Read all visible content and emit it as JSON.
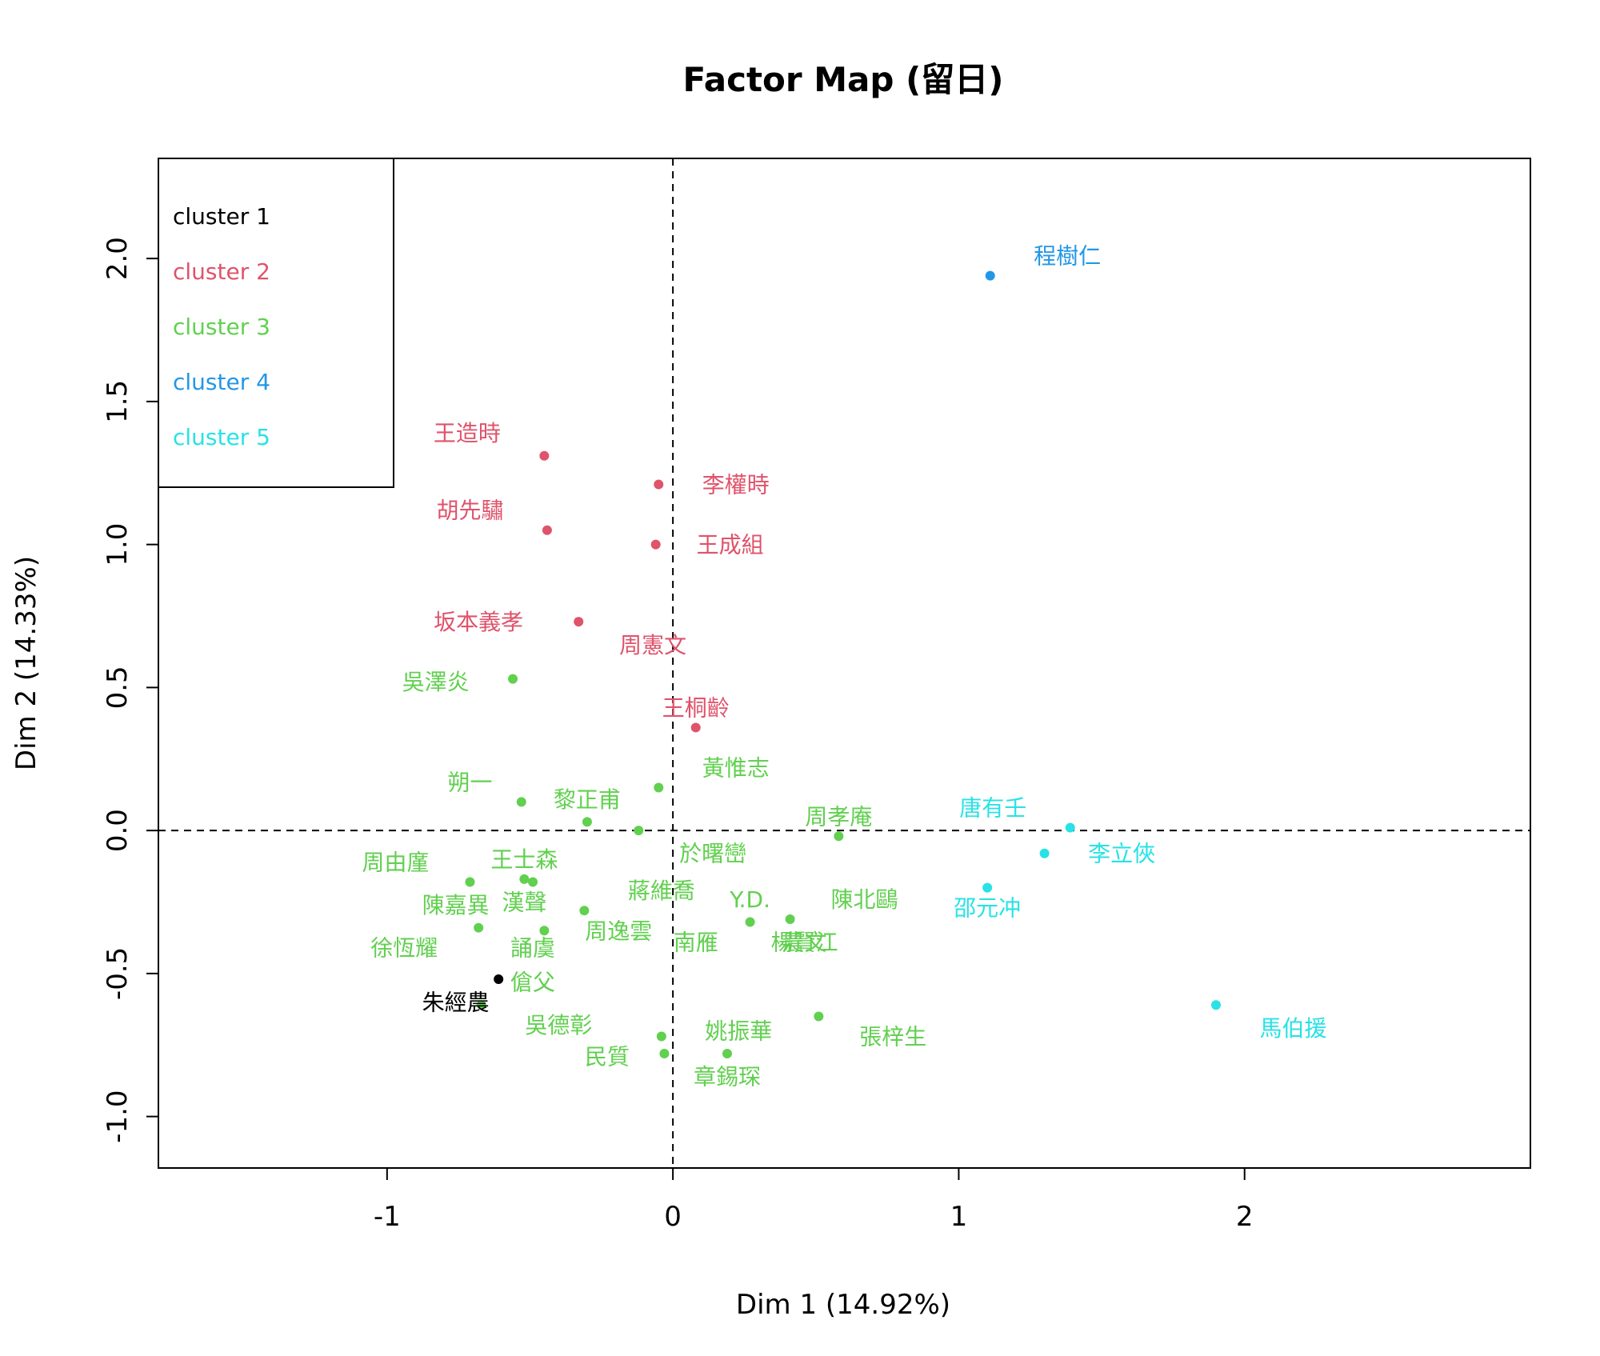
{
  "chart_data": {
    "type": "scatter",
    "title": "Factor Map (留日)",
    "xlabel": "Dim 1 (14.92%)",
    "ylabel": "Dim 2 (14.33%)",
    "xlim": [
      -1.8,
      3.0
    ],
    "ylim": [
      -1.18,
      2.35
    ],
    "x_ticks": [
      -1,
      0,
      1,
      2
    ],
    "x_tick_labels": [
      "-1",
      "0",
      "1",
      "2"
    ],
    "y_ticks": [
      -1.0,
      -0.5,
      0.0,
      0.5,
      1.0,
      1.5,
      2.0
    ],
    "y_tick_labels": [
      "-1.0",
      "-0.5",
      "0.0",
      "0.5",
      "1.0",
      "1.5",
      "2.0"
    ],
    "reference_lines": {
      "x": 0,
      "y": 0,
      "style": "dashed"
    },
    "legend": {
      "position": "top-left",
      "entries": [
        {
          "label": "cluster 1",
          "color": "#000000"
        },
        {
          "label": "cluster 2",
          "color": "#DF536B"
        },
        {
          "label": "cluster 3",
          "color": "#61D04F"
        },
        {
          "label": "cluster 4",
          "color": "#2297E6"
        },
        {
          "label": "cluster 5",
          "color": "#28E2E5"
        }
      ]
    },
    "points": [
      {
        "label": "朱經農",
        "cluster": 1,
        "x": -0.61,
        "y": -0.52,
        "lx": -0.76,
        "ly": -0.6
      },
      {
        "label": "王造時",
        "cluster": 2,
        "x": -0.45,
        "y": 1.31,
        "lx": -0.72,
        "ly": 1.39
      },
      {
        "label": "李權時",
        "cluster": 2,
        "x": -0.05,
        "y": 1.21,
        "lx": 0.22,
        "ly": 1.21
      },
      {
        "label": "胡先驌",
        "cluster": 2,
        "x": -0.44,
        "y": 1.05,
        "lx": -0.71,
        "ly": 1.12
      },
      {
        "label": "王成組",
        "cluster": 2,
        "x": -0.06,
        "y": 1.0,
        "lx": 0.2,
        "ly": 1.0
      },
      {
        "label": "坂本義孝",
        "cluster": 2,
        "x": -0.33,
        "y": 0.73,
        "lx": -0.68,
        "ly": 0.73
      },
      {
        "label": "周憲文",
        "cluster": 2,
        "x": null,
        "y": null,
        "lx": -0.07,
        "ly": 0.65
      },
      {
        "label": "王桐齡",
        "cluster": 2,
        "x": 0.08,
        "y": 0.36,
        "lx": 0.08,
        "ly": 0.43
      },
      {
        "label": "吳澤炎",
        "cluster": 3,
        "x": -0.56,
        "y": 0.53,
        "lx": -0.83,
        "ly": 0.52
      },
      {
        "label": "黃惟志",
        "cluster": 3,
        "x": -0.05,
        "y": 0.15,
        "lx": 0.22,
        "ly": 0.22
      },
      {
        "label": "朔一",
        "cluster": 3,
        "x": -0.53,
        "y": 0.1,
        "lx": -0.71,
        "ly": 0.17
      },
      {
        "label": "黎正甫",
        "cluster": 3,
        "x": -0.3,
        "y": 0.03,
        "lx": -0.3,
        "ly": 0.11
      },
      {
        "label": "周孝庵",
        "cluster": 3,
        "x": 0.58,
        "y": -0.02,
        "lx": 0.58,
        "ly": 0.05
      },
      {
        "label": "於曙巒",
        "cluster": 3,
        "x": -0.12,
        "y": -0.0,
        "lx": 0.14,
        "ly": -0.08
      },
      {
        "label": "周由廑",
        "cluster": 3,
        "x": -0.71,
        "y": -0.18,
        "lx": -0.97,
        "ly": -0.11
      },
      {
        "label": "王士森",
        "cluster": 3,
        "x": -0.52,
        "y": -0.17,
        "lx": -0.52,
        "ly": -0.1
      },
      {
        "label": "漢聲",
        "cluster": 3,
        "x": -0.49,
        "y": -0.18,
        "lx": -0.52,
        "ly": -0.25
      },
      {
        "label": "陳嘉異",
        "cluster": 3,
        "x": -0.68,
        "y": -0.34,
        "lx": -0.76,
        "ly": -0.26
      },
      {
        "label": "蔣維喬",
        "cluster": 3,
        "x": -0.31,
        "y": -0.28,
        "lx": -0.04,
        "ly": -0.21
      },
      {
        "label": "Y.D.",
        "cluster": 3,
        "x": 0.27,
        "y": -0.32,
        "lx": 0.27,
        "ly": -0.24
      },
      {
        "label": "陳北鷗",
        "cluster": 3,
        "x": 0.41,
        "y": -0.31,
        "lx": 0.67,
        "ly": -0.24
      },
      {
        "label": "周逸雲",
        "cluster": 3,
        "x": null,
        "y": null,
        "lx": -0.19,
        "ly": -0.35
      },
      {
        "label": "南雁",
        "cluster": 3,
        "x": null,
        "y": null,
        "lx": 0.08,
        "ly": -0.39
      },
      {
        "label": "楊賢江",
        "cluster": 3,
        "x": null,
        "y": null,
        "lx": 0.46,
        "ly": -0.39
      },
      {
        "label": "農文",
        "cluster": 3,
        "x": null,
        "y": null,
        "lx": 0.46,
        "ly": -0.39
      },
      {
        "label": "徐恆耀",
        "cluster": 3,
        "x": null,
        "y": null,
        "lx": -0.94,
        "ly": -0.41
      },
      {
        "label": "誦虞",
        "cluster": 3,
        "x": -0.45,
        "y": -0.35,
        "lx": -0.49,
        "ly": -0.41
      },
      {
        "label": "傖父",
        "cluster": 3,
        "x": -0.67,
        "y": -0.61,
        "lx": -0.49,
        "ly": -0.53
      },
      {
        "label": "吳德彰",
        "cluster": 3,
        "x": null,
        "y": null,
        "lx": -0.4,
        "ly": -0.68
      },
      {
        "label": "姚振華",
        "cluster": 3,
        "x": 0.51,
        "y": -0.65,
        "lx": 0.23,
        "ly": -0.7
      },
      {
        "label": "張梓生",
        "cluster": 3,
        "x": null,
        "y": null,
        "lx": 0.77,
        "ly": -0.72
      },
      {
        "label": "民質",
        "cluster": 3,
        "x": -0.04,
        "y": -0.72,
        "lx": -0.23,
        "ly": -0.79
      },
      {
        "label": "章錫琛",
        "cluster": 3,
        "x": 0.19,
        "y": -0.78,
        "lx": 0.19,
        "ly": -0.86
      },
      {
        "label": "",
        "cluster": 3,
        "x": -0.03,
        "y": -0.78
      },
      {
        "label": "程樹仁",
        "cluster": 4,
        "x": 1.11,
        "y": 1.94,
        "lx": 1.38,
        "ly": 2.01
      },
      {
        "label": "唐有壬",
        "cluster": 5,
        "x": 1.39,
        "y": 0.01,
        "lx": 1.12,
        "ly": 0.08
      },
      {
        "label": "李立俠",
        "cluster": 5,
        "x": 1.3,
        "y": -0.08,
        "lx": 1.57,
        "ly": -0.08
      },
      {
        "label": "邵元冲",
        "cluster": 5,
        "x": 1.1,
        "y": -0.2,
        "lx": 1.1,
        "ly": -0.27
      },
      {
        "label": "馬伯援",
        "cluster": 5,
        "x": 1.9,
        "y": -0.61,
        "lx": 2.17,
        "ly": -0.69
      }
    ]
  }
}
